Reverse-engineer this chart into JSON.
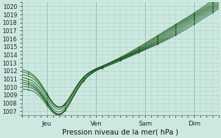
{
  "xlabel": "Pression niveau de la mer( hPa )",
  "ylim": [
    1006.5,
    1020.5
  ],
  "xlim": [
    0,
    96
  ],
  "yticks": [
    1007,
    1008,
    1009,
    1010,
    1011,
    1012,
    1013,
    1014,
    1015,
    1016,
    1017,
    1018,
    1019,
    1020
  ],
  "xtick_positions": [
    12,
    36,
    60,
    84
  ],
  "xtick_labels": [
    "Jeu",
    "Ven",
    "Sam",
    "Dim"
  ],
  "bg_color": "#cce8e0",
  "grid_color": "#aad0c8",
  "line_color": "#1a5c1a",
  "vline_color": "#6a9a8a",
  "figsize": [
    3.2,
    2.0
  ],
  "dpi": 100,
  "num_lines": 9
}
